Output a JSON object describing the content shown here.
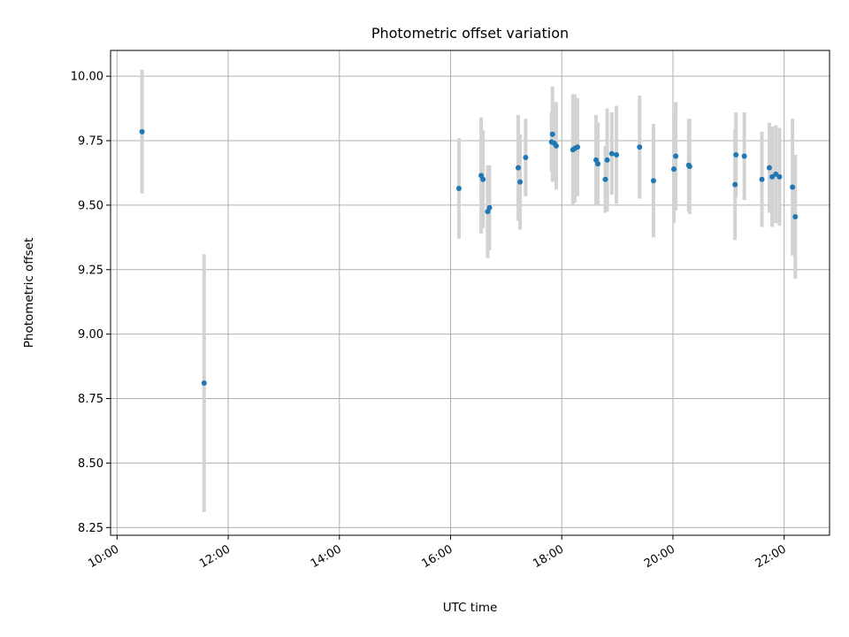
{
  "chart_data": {
    "type": "scatter",
    "title": "Photometric offset variation",
    "xlabel": "UTC time",
    "ylabel": "Photometric offset",
    "xlim": [
      "09:53",
      "22:49"
    ],
    "ylim": [
      8.22,
      10.1
    ],
    "x_ticks": [
      "10:00",
      "12:00",
      "14:00",
      "16:00",
      "18:00",
      "20:00",
      "22:00"
    ],
    "y_ticks": [
      "8.25",
      "8.50",
      "8.75",
      "9.00",
      "9.25",
      "9.50",
      "9.75",
      "10.00"
    ],
    "grid": true,
    "legend": false,
    "colors": {
      "points": "#1f77b4",
      "error_bars": "#d3d3d3",
      "grid": "#b0b0b0"
    },
    "series": [
      {
        "points": [
          {
            "x": "10:27",
            "y": 9.785,
            "err": 0.24
          },
          {
            "x": "11:34",
            "y": 8.81,
            "err": 0.5
          },
          {
            "x": "16:09",
            "y": 9.565,
            "err": 0.195
          },
          {
            "x": "16:33",
            "y": 9.615,
            "err": 0.225
          },
          {
            "x": "16:35",
            "y": 9.6,
            "err": 0.19
          },
          {
            "x": "16:40",
            "y": 9.475,
            "err": 0.18
          },
          {
            "x": "16:42",
            "y": 9.49,
            "err": 0.165
          },
          {
            "x": "17:13",
            "y": 9.645,
            "err": 0.205
          },
          {
            "x": "17:15",
            "y": 9.59,
            "err": 0.185
          },
          {
            "x": "17:21",
            "y": 9.685,
            "err": 0.15
          },
          {
            "x": "17:49",
            "y": 9.745,
            "err": 0.115
          },
          {
            "x": "17:50",
            "y": 9.775,
            "err": 0.185
          },
          {
            "x": "17:52",
            "y": 9.74,
            "err": 0.14
          },
          {
            "x": "17:54",
            "y": 9.73,
            "err": 0.17
          },
          {
            "x": "18:12",
            "y": 9.715,
            "err": 0.215
          },
          {
            "x": "18:14",
            "y": 9.72,
            "err": 0.21
          },
          {
            "x": "18:17",
            "y": 9.725,
            "err": 0.19
          },
          {
            "x": "18:37",
            "y": 9.675,
            "err": 0.175
          },
          {
            "x": "18:39",
            "y": 9.66,
            "err": 0.16
          },
          {
            "x": "18:47",
            "y": 9.6,
            "err": 0.13
          },
          {
            "x": "18:49",
            "y": 9.675,
            "err": 0.2
          },
          {
            "x": "18:54",
            "y": 9.7,
            "err": 0.16
          },
          {
            "x": "18:59",
            "y": 9.695,
            "err": 0.19
          },
          {
            "x": "19:24",
            "y": 9.725,
            "err": 0.2
          },
          {
            "x": "19:39",
            "y": 9.595,
            "err": 0.22
          },
          {
            "x": "20:01",
            "y": 9.64,
            "err": 0.21
          },
          {
            "x": "20:03",
            "y": 9.69,
            "err": 0.21
          },
          {
            "x": "20:17",
            "y": 9.655,
            "err": 0.18
          },
          {
            "x": "20:18",
            "y": 9.65,
            "err": 0.185
          },
          {
            "x": "21:07",
            "y": 9.58,
            "err": 0.215
          },
          {
            "x": "21:08",
            "y": 9.695,
            "err": 0.165
          },
          {
            "x": "21:17",
            "y": 9.69,
            "err": 0.17
          },
          {
            "x": "21:36",
            "y": 9.6,
            "err": 0.185
          },
          {
            "x": "21:44",
            "y": 9.645,
            "err": 0.175
          },
          {
            "x": "21:47",
            "y": 9.61,
            "err": 0.195
          },
          {
            "x": "21:51",
            "y": 9.62,
            "err": 0.19
          },
          {
            "x": "21:55",
            "y": 9.61,
            "err": 0.19
          },
          {
            "x": "22:09",
            "y": 9.57,
            "err": 0.265
          },
          {
            "x": "22:12",
            "y": 9.455,
            "err": 0.24
          }
        ]
      }
    ]
  }
}
